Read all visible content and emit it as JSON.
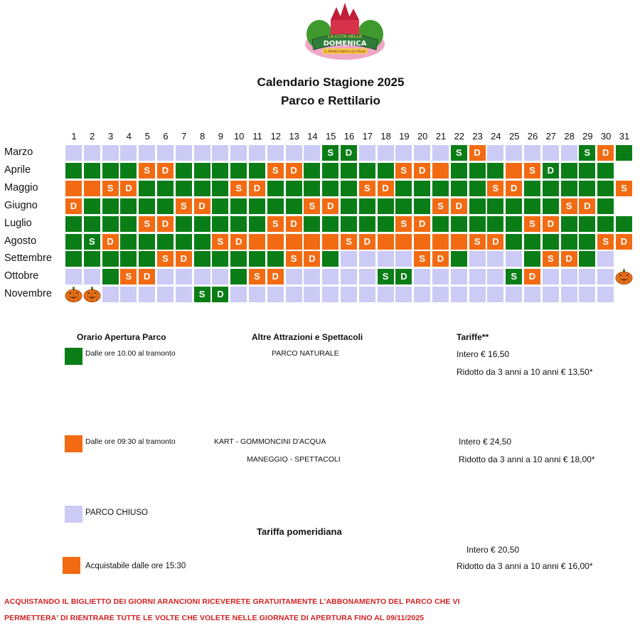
{
  "logo": {
    "text_top": "LA CITTÀ DELLA",
    "text_main": "DOMENICA",
    "text_sub": "IL PRIMO PARCO DI ITALIA"
  },
  "title": "Calendario Stagione 2025",
  "subtitle": "Parco e Rettilario",
  "days": [
    "1",
    "2",
    "3",
    "4",
    "5",
    "6",
    "7",
    "8",
    "9",
    "10",
    "11",
    "12",
    "13",
    "14",
    "15",
    "16",
    "17",
    "18",
    "19",
    "20",
    "21",
    "22",
    "23",
    "24",
    "25",
    "26",
    "27",
    "28",
    "29",
    "30",
    "31"
  ],
  "colors": {
    "open_green": "#0a7d17",
    "open_orange": "#f26b12",
    "closed": "#cccbf5",
    "notice_red": "#d42020"
  },
  "calendar": [
    {
      "month": "Marzo",
      "cells": "LLLLLLLLLLLLLLGGLLLLLGOLLLLLGOG",
      "labels": {
        "15": "S",
        "16": "D",
        "22": "S",
        "23": "D",
        "29": "S",
        "30": "D"
      }
    },
    {
      "month": "Aprile",
      "cells": "GGGGOOGGGGGOOGGGGGOOOGGGOOGGGG-",
      "labels": {
        "5": "S",
        "6": "D",
        "12": "S",
        "13": "D",
        "19": "S",
        "20": "D",
        "26": "S",
        "27": "D"
      }
    },
    {
      "month": "Maggio",
      "cells": "OOOOGGGGGOOGGGGGOOGGGGGOOGGGGGO",
      "labels": {
        "3": "S",
        "4": "D",
        "10": "S",
        "11": "D",
        "17": "S",
        "18": "D",
        "24": "S",
        "25": "D",
        "31": "S"
      }
    },
    {
      "month": "Giugno",
      "cells": "OGGGGGOOGGGGGOOGGGGGOOGGGGGOOG-",
      "labels": {
        "1": "D",
        "7": "S",
        "8": "D",
        "14": "S",
        "15": "D",
        "21": "S",
        "22": "D",
        "28": "S",
        "29": "D"
      }
    },
    {
      "month": "Luglio",
      "cells": "GGGGOOGGGGGOOGGGGGOOGGGGGOOGGGG",
      "labels": {
        "5": "S",
        "6": "D",
        "12": "S",
        "13": "D",
        "19": "S",
        "20": "D",
        "26": "S",
        "27": "D"
      }
    },
    {
      "month": "Agosto",
      "cells": "GGOGGGGGOOOOOOOOOOOOOOOOGGGGGOO",
      "labels": {
        "2": "S",
        "3": "D",
        "9": "S",
        "10": "D",
        "16": "S",
        "17": "D",
        "23": "S",
        "24": "D",
        "30": "S",
        "31": "D"
      }
    },
    {
      "month": "Settembre",
      "cells": "GGGGGOOGGGGGOOGLLLLOOGLLLGOOGL-",
      "labels": {
        "6": "S",
        "7": "D",
        "13": "S",
        "14": "D",
        "20": "S",
        "21": "D",
        "27": "S",
        "28": "D"
      }
    },
    {
      "month": "Ottobre",
      "cells": "LLGOOLLLLGOOLLLLLGGLLLLLGOLLLLP",
      "labels": {
        "4": "S",
        "5": "D",
        "11": "S",
        "12": "D",
        "18": "S",
        "19": "D",
        "25": "S",
        "26": "D"
      }
    },
    {
      "month": "Novembre",
      "cells": "PPLLLLLGGLLLLLLLLLLLLLLLLLLLLL-",
      "labels": {
        "8": "S",
        "9": "D"
      }
    }
  ],
  "legend": {
    "hours_title": "Orario Apertura Parco",
    "hours_green": "Dalle ore 10.00 al tramonto",
    "hours_orange": "Dalle ore 09:30 al tramonto",
    "closed": "PARCO CHIUSO",
    "afternoon_purchase": "Acquistabile dalle ore 15:30",
    "attractions_title": "Altre Attrazioni e Spettacoli",
    "attr_green": "PARCO NATURALE",
    "attr_orange_1": "KART - GOMMONCINI D'ACQUA",
    "attr_orange_2": "MANEGGIO - SPETTACOLI",
    "tariffs_title": "Tariffe**",
    "green_full": "Intero € 16,50",
    "green_reduced": "Ridotto da 3 anni a 10 anni € 13,50*",
    "orange_full": "Intero € 24,50",
    "orange_reduced": "Ridotto da 3 anni a 10 anni € 18,00*",
    "afternoon_title": "Tariffa pomeridiana",
    "afternoon_full": "Intero € 20,50",
    "afternoon_reduced": "Ridotto da 3 anni a 10 anni € 16,00*"
  },
  "notice": {
    "line1": "ACQUISTANDO IL BIGLIETTO DEI GIORNI ARANCIONI RICEVERETE GRATUITAMENTE L'ABBONAMENTO DEL PARCO CHE VI",
    "line2": "PERMETTERA' DI RIENTRARE TUTTE LE VOLTE CHE VOLETE NELLE GIORNATE DI APERTURA FINO AL 09/11/2025"
  }
}
